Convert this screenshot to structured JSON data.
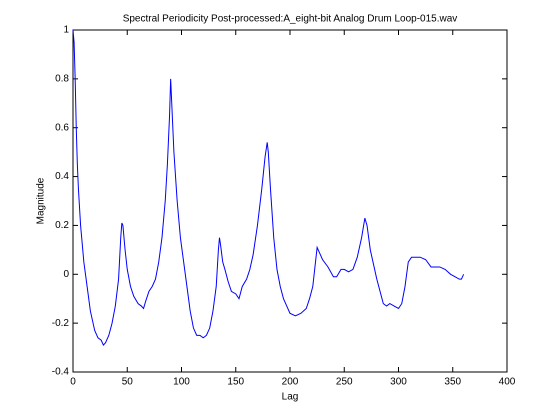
{
  "chart_data": {
    "type": "line",
    "title": "Spectral Periodicity Post-processed:A_eight-bit Analog Drum Loop-015.wav",
    "xlabel": "Lag",
    "ylabel": "Magnitude",
    "xlim": [
      0,
      400
    ],
    "ylim": [
      -0.4,
      1
    ],
    "xticks": [
      0,
      50,
      100,
      150,
      200,
      250,
      300,
      350,
      400
    ],
    "yticks": [
      -0.4,
      -0.2,
      0,
      0.2,
      0.4,
      0.6,
      0.8,
      1
    ],
    "series": [
      {
        "color": "#0000ff",
        "x": [
          0,
          1,
          2,
          3,
          4,
          5,
          7,
          10,
          13,
          16,
          20,
          23,
          26,
          28,
          30,
          33,
          36,
          39,
          42,
          44,
          45,
          46,
          48,
          50,
          53,
          56,
          60,
          63,
          65,
          67,
          70,
          73,
          76,
          79,
          82,
          85,
          87,
          89,
          90,
          91,
          93,
          96,
          99,
          102,
          105,
          108,
          111,
          114,
          117,
          120,
          123,
          126,
          129,
          132,
          134,
          135,
          136,
          138,
          140,
          143,
          146,
          150,
          153,
          156,
          160,
          163,
          166,
          170,
          174,
          177,
          179,
          180,
          182,
          185,
          188,
          191,
          194,
          197,
          200,
          205,
          210,
          215,
          218,
          221,
          223,
          225,
          227,
          230,
          235,
          240,
          243,
          247,
          250,
          254,
          258,
          262,
          266,
          269,
          271,
          274,
          277,
          280,
          283,
          286,
          289,
          292,
          296,
          300,
          303,
          306,
          309,
          312,
          316,
          320,
          325,
          330,
          334,
          338,
          343,
          348,
          352,
          356,
          358,
          360
        ],
        "values": [
          1,
          0.95,
          0.8,
          0.6,
          0.45,
          0.35,
          0.2,
          0.05,
          -0.05,
          -0.15,
          -0.23,
          -0.26,
          -0.27,
          -0.29,
          -0.28,
          -0.25,
          -0.2,
          -0.13,
          -0.02,
          0.15,
          0.21,
          0.2,
          0.1,
          0.02,
          -0.05,
          -0.09,
          -0.12,
          -0.13,
          -0.14,
          -0.11,
          -0.07,
          -0.05,
          -0.02,
          0.05,
          0.15,
          0.3,
          0.45,
          0.65,
          0.8,
          0.7,
          0.5,
          0.3,
          0.15,
          0.05,
          -0.05,
          -0.15,
          -0.22,
          -0.25,
          -0.25,
          -0.26,
          -0.25,
          -0.22,
          -0.15,
          -0.05,
          0.1,
          0.15,
          0.12,
          0.05,
          0.02,
          -0.03,
          -0.07,
          -0.08,
          -0.1,
          -0.05,
          -0.02,
          0.02,
          0.08,
          0.2,
          0.35,
          0.48,
          0.54,
          0.5,
          0.35,
          0.15,
          0.02,
          -0.05,
          -0.1,
          -0.13,
          -0.16,
          -0.17,
          -0.16,
          -0.14,
          -0.1,
          -0.05,
          0.03,
          0.11,
          0.09,
          0.06,
          0.03,
          -0.01,
          -0.01,
          0.02,
          0.02,
          0.01,
          0.02,
          0.07,
          0.15,
          0.23,
          0.2,
          0.1,
          0.04,
          -0.02,
          -0.07,
          -0.12,
          -0.13,
          -0.12,
          -0.13,
          -0.14,
          -0.12,
          -0.05,
          0.05,
          0.07,
          0.07,
          0.07,
          0.06,
          0.03,
          0.03,
          0.03,
          0.02,
          0,
          -0.01,
          -0.02,
          -0.02,
          0
        ]
      }
    ]
  }
}
